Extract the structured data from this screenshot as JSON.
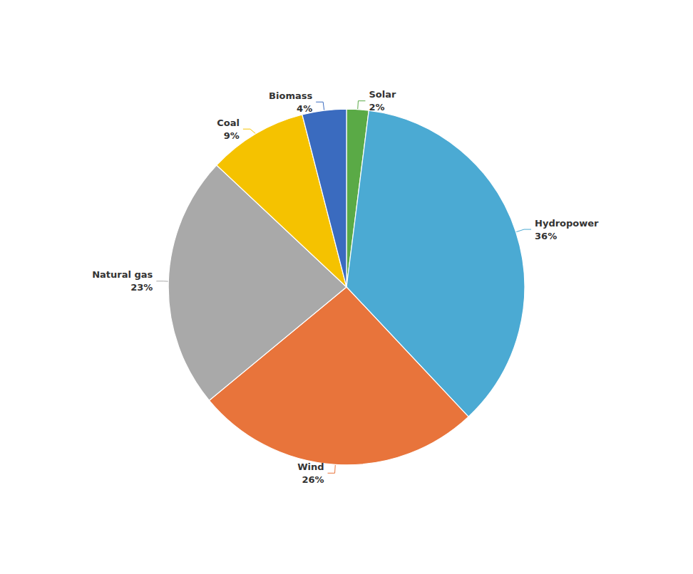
{
  "chart_data": {
    "type": "pie",
    "categories": [
      "Solar",
      "Hydropower",
      "Wind",
      "Natural gas",
      "Coal",
      "Biomass"
    ],
    "values": [
      2,
      36,
      26,
      23,
      9,
      4
    ],
    "value_labels": [
      "2%",
      "36%",
      "26%",
      "23%",
      "9%",
      "4%"
    ],
    "colors": [
      "#5aaa46",
      "#4baad3",
      "#e8743b",
      "#a9a9a9",
      "#f5c200",
      "#3a6bbf"
    ],
    "data_labels": true
  }
}
